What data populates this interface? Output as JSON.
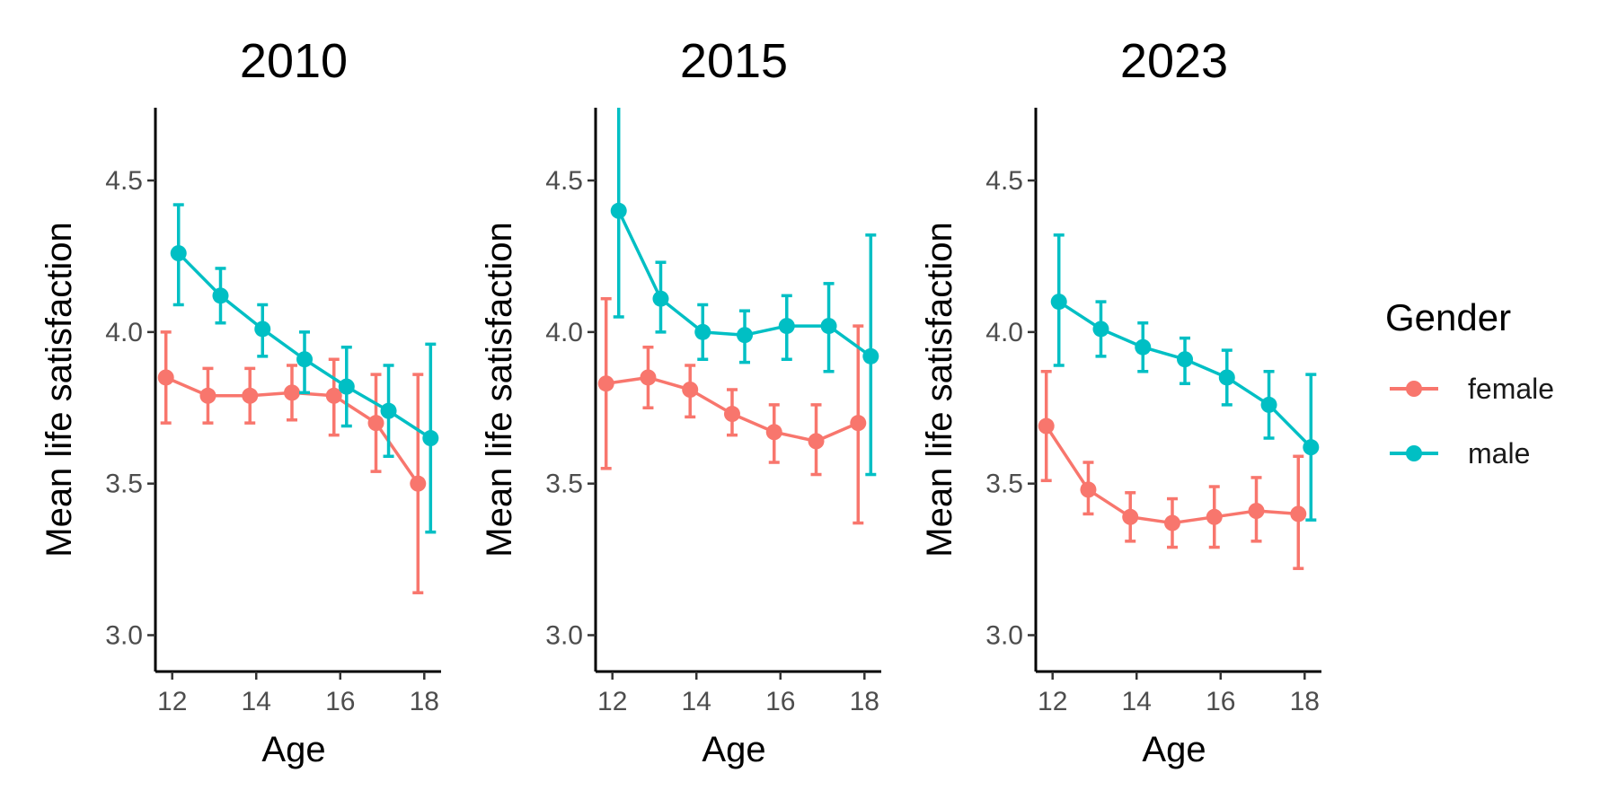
{
  "chart_data": {
    "type": "line",
    "legend": {
      "title": "Gender",
      "position": "right",
      "entries": [
        {
          "name": "female",
          "color": "#F8766D"
        },
        {
          "name": "male",
          "color": "#00BFC4"
        }
      ]
    },
    "xlabel": "Age",
    "ylabel": "Mean life satisfaction",
    "xlim": [
      11.6,
      18.4
    ],
    "ylim": [
      2.88,
      4.74
    ],
    "xticks": [
      12,
      14,
      16,
      18
    ],
    "yticks": [
      3.0,
      3.5,
      4.0,
      4.5
    ],
    "xtick_labels": [
      "12",
      "14",
      "16",
      "18"
    ],
    "ytick_labels": [
      "3.0",
      "3.5",
      "4.0",
      "4.5"
    ],
    "grid": false,
    "point_offset": 0.15,
    "panels": [
      {
        "title": "2010",
        "series": [
          {
            "name": "female",
            "color": "#F8766D",
            "x": [
              12,
              13,
              14,
              15,
              16,
              17,
              18
            ],
            "y": [
              3.85,
              3.79,
              3.79,
              3.8,
              3.79,
              3.7,
              3.5
            ],
            "lower": [
              3.7,
              3.7,
              3.7,
              3.71,
              3.66,
              3.54,
              3.14
            ],
            "upper": [
              4.0,
              3.88,
              3.88,
              3.89,
              3.91,
              3.86,
              3.86
            ]
          },
          {
            "name": "male",
            "color": "#00BFC4",
            "x": [
              12,
              13,
              14,
              15,
              16,
              17,
              18
            ],
            "y": [
              4.26,
              4.12,
              4.01,
              3.91,
              3.82,
              3.74,
              3.65
            ],
            "lower": [
              4.09,
              4.03,
              3.92,
              3.8,
              3.69,
              3.59,
              3.34
            ],
            "upper": [
              4.42,
              4.21,
              4.09,
              4.0,
              3.95,
              3.89,
              3.96
            ]
          }
        ]
      },
      {
        "title": "2015",
        "series": [
          {
            "name": "female",
            "color": "#F8766D",
            "x": [
              12,
              13,
              14,
              15,
              16,
              17,
              18
            ],
            "y": [
              3.83,
              3.85,
              3.81,
              3.73,
              3.67,
              3.64,
              3.7
            ],
            "lower": [
              3.55,
              3.75,
              3.72,
              3.66,
              3.57,
              3.53,
              3.37
            ],
            "upper": [
              4.11,
              3.95,
              3.89,
              3.81,
              3.76,
              3.76,
              4.02
            ]
          },
          {
            "name": "male",
            "color": "#00BFC4",
            "x": [
              12,
              13,
              14,
              15,
              16,
              17,
              18
            ],
            "y": [
              4.4,
              4.11,
              4.0,
              3.99,
              4.02,
              4.02,
              3.92
            ],
            "lower": [
              4.05,
              4.0,
              3.91,
              3.9,
              3.91,
              3.87,
              3.53
            ],
            "upper": [
              4.76,
              4.23,
              4.09,
              4.07,
              4.12,
              4.16,
              4.32
            ]
          }
        ]
      },
      {
        "title": "2023",
        "series": [
          {
            "name": "female",
            "color": "#F8766D",
            "x": [
              12,
              13,
              14,
              15,
              16,
              17,
              18
            ],
            "y": [
              3.69,
              3.48,
              3.39,
              3.37,
              3.39,
              3.41,
              3.4
            ],
            "lower": [
              3.51,
              3.4,
              3.31,
              3.29,
              3.29,
              3.31,
              3.22
            ],
            "upper": [
              3.87,
              3.57,
              3.47,
              3.45,
              3.49,
              3.52,
              3.59
            ]
          },
          {
            "name": "male",
            "color": "#00BFC4",
            "x": [
              12,
              13,
              14,
              15,
              16,
              17,
              18
            ],
            "y": [
              4.1,
              4.01,
              3.95,
              3.91,
              3.85,
              3.76,
              3.62
            ],
            "lower": [
              3.89,
              3.92,
              3.87,
              3.83,
              3.76,
              3.65,
              3.38
            ],
            "upper": [
              4.32,
              4.1,
              4.03,
              3.98,
              3.94,
              3.87,
              3.86
            ]
          }
        ]
      }
    ]
  }
}
